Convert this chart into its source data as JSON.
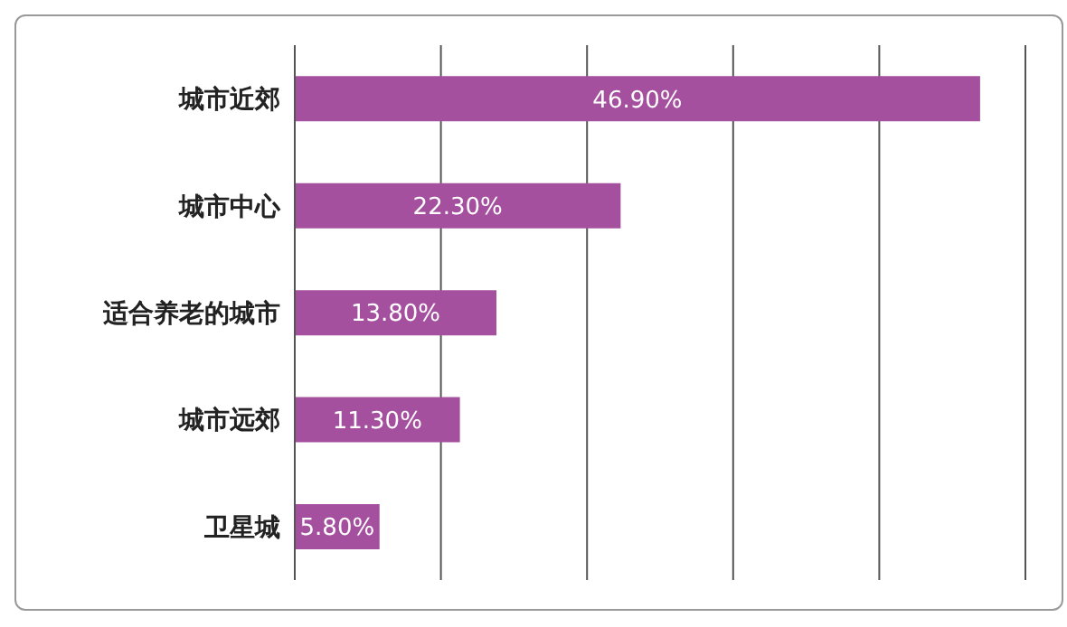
{
  "chart_data": {
    "type": "bar",
    "orientation": "horizontal",
    "categories": [
      "城市近郊",
      "城市中心",
      "适合养老的城市",
      "城市远郊",
      "卫星城"
    ],
    "values": [
      46.9,
      22.3,
      13.8,
      11.3,
      5.8
    ],
    "value_labels": [
      "46.90%",
      "22.30%",
      "13.80%",
      "11.30%",
      "5.80%"
    ],
    "color": "#a4509e",
    "xlim": [
      0,
      50
    ],
    "grid": "x",
    "tick_labels": "y"
  }
}
